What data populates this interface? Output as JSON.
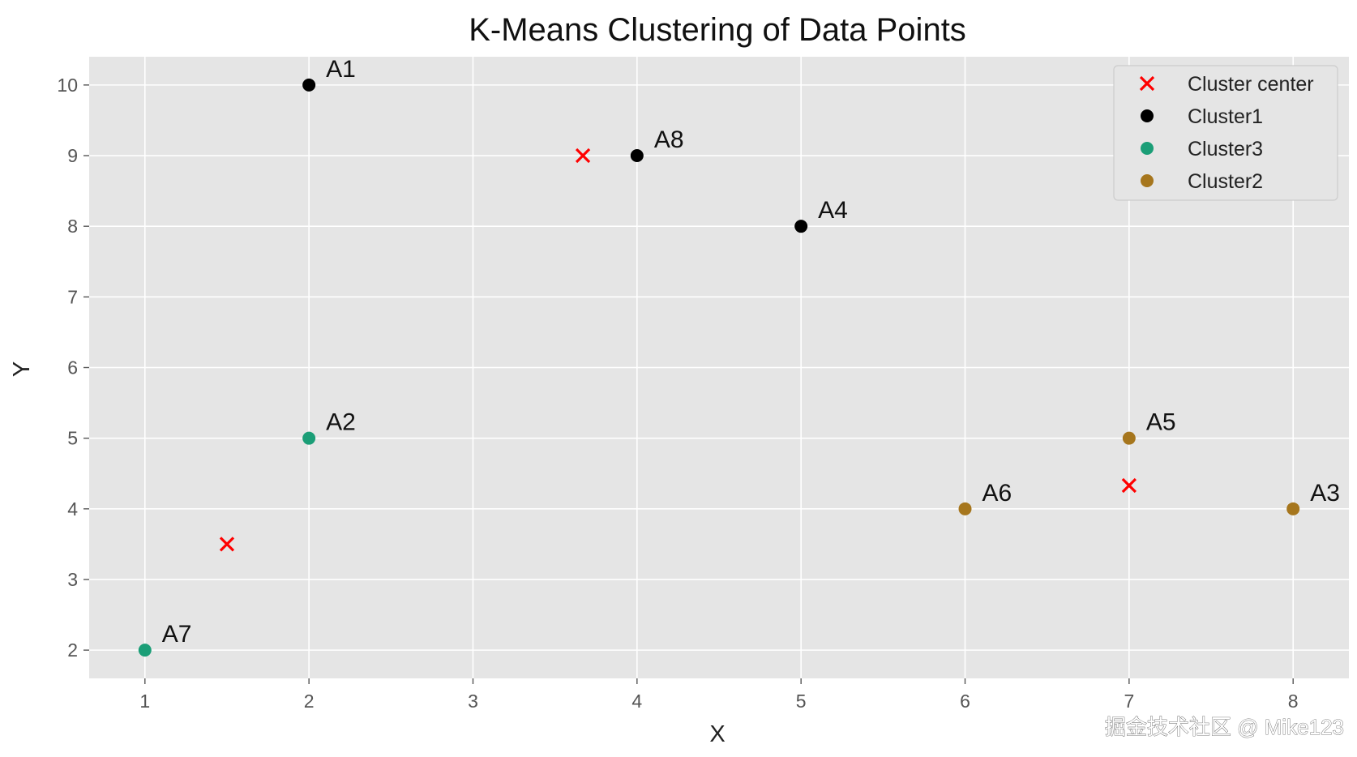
{
  "chart_data": {
    "type": "scatter",
    "title": "K-Means Clustering of Data Points",
    "xlabel": "X",
    "ylabel": "Y",
    "xlim": [
      0.66,
      8.34
    ],
    "ylim": [
      1.6,
      10.4
    ],
    "xticks": [
      "1",
      "2",
      "3",
      "4",
      "5",
      "6",
      "7",
      "8"
    ],
    "yticks": [
      "2",
      "3",
      "4",
      "5",
      "6",
      "7",
      "8",
      "9",
      "10"
    ],
    "grid": true,
    "legend_position": "top-right",
    "series": [
      {
        "name": "Cluster center",
        "marker": "x",
        "color": "#ff0000",
        "points": [
          {
            "x": 1.5,
            "y": 3.5
          },
          {
            "x": 3.67,
            "y": 9.0
          },
          {
            "x": 7.0,
            "y": 4.33
          }
        ]
      },
      {
        "name": "Cluster1",
        "marker": "circle",
        "color": "#000000",
        "points": [
          {
            "x": 2,
            "y": 10,
            "label": "A1"
          },
          {
            "x": 4,
            "y": 9,
            "label": "A8"
          },
          {
            "x": 5,
            "y": 8,
            "label": "A4"
          }
        ]
      },
      {
        "name": "Cluster3",
        "marker": "circle",
        "color": "#1b9e77",
        "points": [
          {
            "x": 2,
            "y": 5,
            "label": "A2"
          },
          {
            "x": 1,
            "y": 2,
            "label": "A7"
          }
        ]
      },
      {
        "name": "Cluster2",
        "marker": "circle",
        "color": "#a6761d",
        "points": [
          {
            "x": 7,
            "y": 5,
            "label": "A5"
          },
          {
            "x": 6,
            "y": 4,
            "label": "A6"
          },
          {
            "x": 8,
            "y": 4,
            "label": "A3"
          }
        ]
      }
    ],
    "colors": {
      "plot_background": "#e5e5e5",
      "grid": "#ffffff"
    }
  },
  "watermark": "掘金技术社区 @ Mike123"
}
